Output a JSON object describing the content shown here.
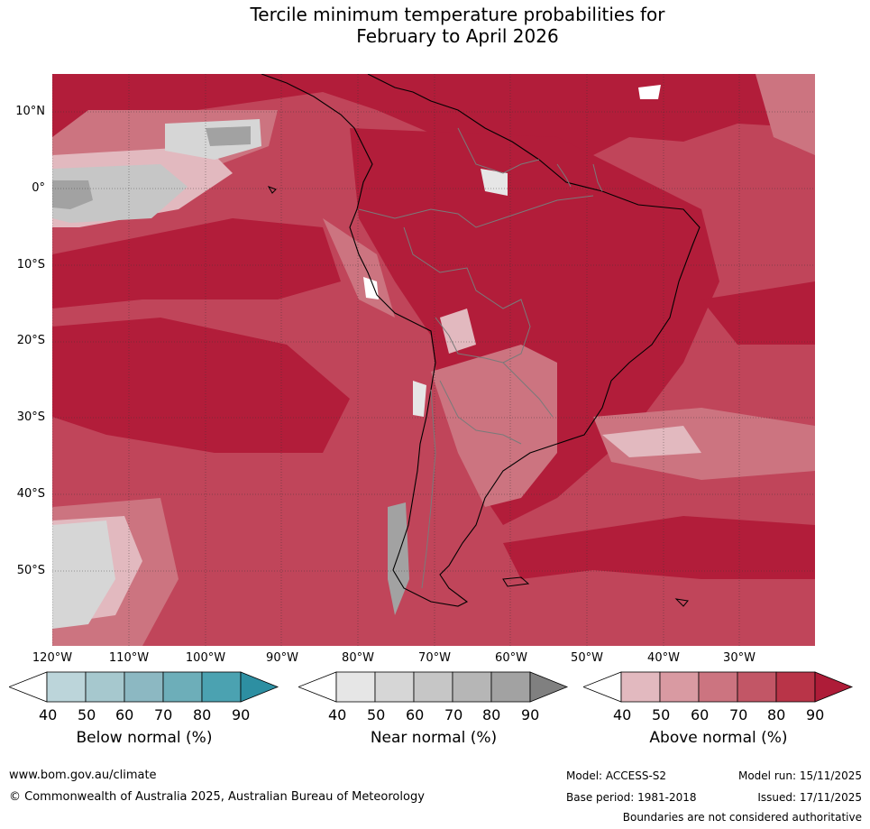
{
  "title": {
    "line1": "Tercile minimum temperature probabilities for",
    "line2": "February to April 2026"
  },
  "map": {
    "lat_labels": [
      "10°N",
      "0°",
      "10°S",
      "20°S",
      "30°S",
      "40°S",
      "50°S"
    ],
    "lon_labels": [
      "120°W",
      "110°W",
      "100°W",
      "90°W",
      "80°W",
      "70°W",
      "60°W",
      "50°W",
      "40°W",
      "30°W"
    ]
  },
  "colorbars": [
    {
      "title": "Below normal (%)",
      "ticks": [
        "40",
        "50",
        "60",
        "70",
        "80",
        "90"
      ],
      "colors": [
        "#ffffff",
        "#bcd5da",
        "#a6c8ce",
        "#8cb8c2",
        "#6daeb9",
        "#4ba2b1",
        "#2d8fa2"
      ]
    },
    {
      "title": "Near normal (%)",
      "ticks": [
        "40",
        "50",
        "60",
        "70",
        "80",
        "90"
      ],
      "colors": [
        "#ffffff",
        "#e6e6e6",
        "#d6d6d6",
        "#c6c6c6",
        "#b6b6b6",
        "#a2a2a2",
        "#808080"
      ]
    },
    {
      "title": "Above normal (%)",
      "ticks": [
        "40",
        "50",
        "60",
        "70",
        "80",
        "90"
      ],
      "colors": [
        "#ffffff",
        "#e2b9bf",
        "#d99aa2",
        "#cc7480",
        "#c25666",
        "#b93448",
        "#ae1c38"
      ]
    }
  ],
  "footer": {
    "website": "www.bom.gov.au/climate",
    "copyright": "© Commonwealth of Australia 2025, Australian Bureau of Meteorology",
    "model": "Model: ACCESS-S2",
    "model_run": "Model run: 15/11/2025",
    "base_period": "Base period: 1981-2018",
    "issued": "Issued: 17/11/2025",
    "boundaries": "Boundaries are not considered authoritative"
  }
}
